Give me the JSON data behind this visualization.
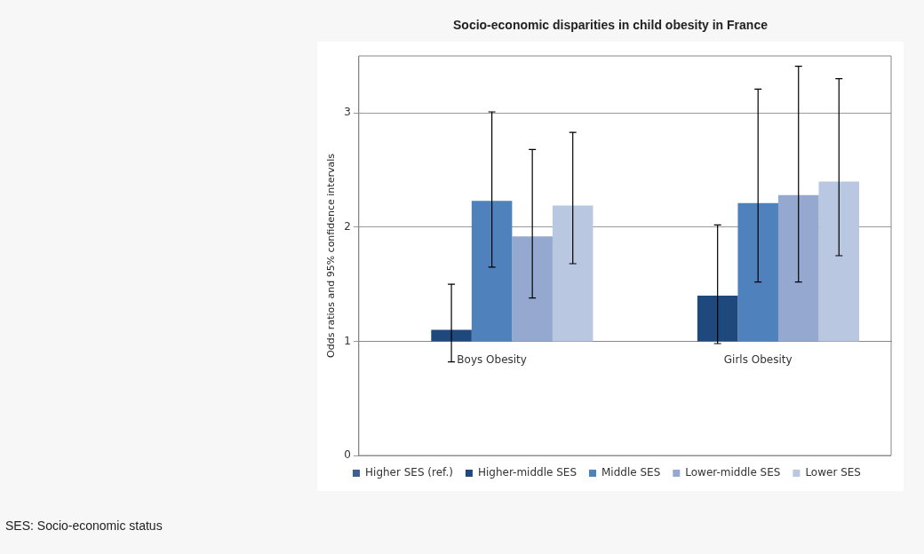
{
  "chart_data": {
    "type": "bar",
    "title": "Socio-economic disparities in child obesity in France",
    "ylabel": "Odds ratios and 95% confidence intervals",
    "categories": [
      "Boys Obesity",
      "Girls Obesity"
    ],
    "series": [
      {
        "name": "Higher SES (ref.)",
        "color": "#3c5f94",
        "values": [
          null,
          null
        ]
      },
      {
        "name": "Higher-middle SES",
        "color": "#1f497d",
        "base": [
          1,
          1
        ],
        "values": [
          0.1,
          0.4
        ],
        "errors": [
          [
            0.82,
            1.5
          ],
          [
            0.98,
            2.02
          ]
        ]
      },
      {
        "name": "Middle SES",
        "color": "#4f81bd",
        "base": [
          1,
          1
        ],
        "values": [
          1.23,
          1.21
        ],
        "errors": [
          [
            1.65,
            3.01
          ],
          [
            1.52,
            3.21
          ]
        ]
      },
      {
        "name": "Lower-middle SES",
        "color": "#95a9d0",
        "base": [
          1,
          1
        ],
        "values": [
          0.92,
          1.28
        ],
        "errors": [
          [
            1.38,
            2.68
          ],
          [
            1.52,
            3.41
          ]
        ]
      },
      {
        "name": "Lower SES",
        "color": "#b9c7e0",
        "base": [
          1,
          1
        ],
        "values": [
          1.19,
          1.4
        ],
        "errors": [
          [
            1.68,
            2.83
          ],
          [
            1.75,
            3.3
          ]
        ]
      }
    ],
    "ylim": [
      0,
      3.5
    ],
    "yticks": [
      0,
      1,
      2,
      3
    ],
    "grid": "y",
    "legend": "bottom",
    "annotations": [
      "SES: Socio-economic status"
    ]
  }
}
